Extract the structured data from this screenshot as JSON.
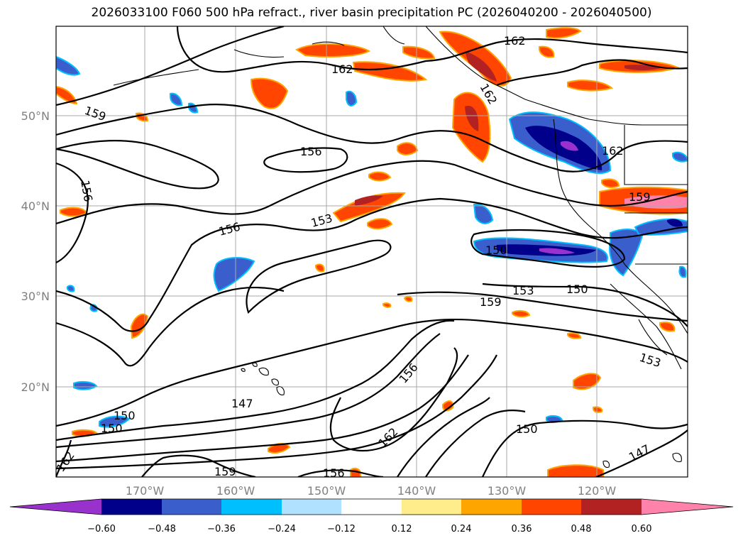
{
  "title": "2026033100 F060 500 hPa refract., river basin precipitation PC (2026040200 - 2026040500)",
  "map": {
    "lat_labels": [
      "50°N",
      "40°N",
      "30°N",
      "20°N"
    ],
    "lon_labels": [
      "170°W",
      "160°W",
      "150°W",
      "140°W",
      "130°W",
      "120°W"
    ],
    "contour_labels": [
      "162",
      "162",
      "162",
      "159",
      "156",
      "156",
      "156",
      "153",
      "150",
      "153",
      "159",
      "150",
      "153",
      "156",
      "162",
      "147",
      "150",
      "150",
      "162",
      "159",
      "156",
      "150",
      "147",
      "162",
      "159"
    ]
  },
  "colorbar": {
    "ticks": [
      "−0.60",
      "−0.48",
      "−0.36",
      "−0.24",
      "−0.12",
      "0.12",
      "0.24",
      "0.36",
      "0.48",
      "0.60"
    ],
    "colors": [
      "#9932cc",
      "#00008b",
      "#3a5fcd",
      "#00bfff",
      "#b0e2ff",
      "#ffffff",
      "#ffec8b",
      "#ffa500",
      "#ff4500",
      "#b22222",
      "#ff82ab"
    ],
    "extend": "both"
  }
}
